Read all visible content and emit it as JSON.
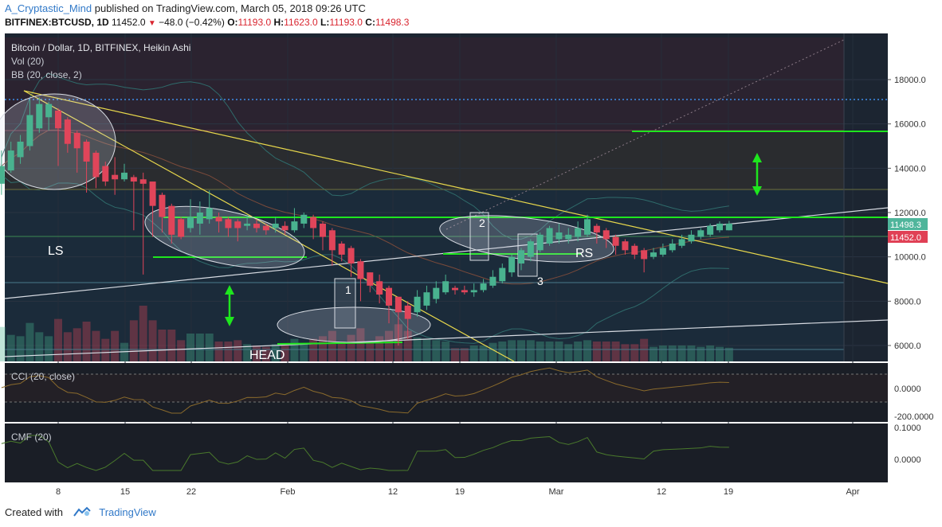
{
  "header": {
    "author": "A_Cryptastic_Mind",
    "published_text": "published on TradingView.com, March 05, 2018 09:26 UTC",
    "symbol": "BITFINEX:BTCUSD, 1D",
    "last": "11452.0",
    "change": "−48.0 (−0.42%)",
    "open_label": "O:",
    "open": "11193.0",
    "high_label": "H:",
    "high": "11623.0",
    "low_label": "L:",
    "low": "11193.0",
    "close_label": "C:",
    "close": "11498.3"
  },
  "legend": {
    "title": "Bitcoin / Dollar, 1D, BITFINEX, Heikin Ashi",
    "vol": "Vol (20)",
    "bb": "BB (20, close, 2)",
    "cci": "CCI (20, close)",
    "cmf": "CMF (20)"
  },
  "annotations": {
    "ls": "LS",
    "head": "HEAD",
    "rs": "RS",
    "p1": "1",
    "p2": "2",
    "p3": "3"
  },
  "price_tags": {
    "close_tag": "11498.3",
    "last_tag": "11452.0",
    "up_color": "#4fb59b",
    "down_color": "#e04055"
  },
  "colors": {
    "background": "#1c2531",
    "up": "#49b28f",
    "down": "#e0455a",
    "green_line": "#1ee61e",
    "yellow_line": "#e8d84c",
    "white_line": "#d8dce3",
    "blue_dotted": "#3e8de8",
    "cci_line": "#8a6a2c",
    "cmf_line": "#4a7a2c"
  },
  "footer": {
    "created_with": "Created with",
    "brand": "TradingView"
  },
  "chart_data": {
    "type": "candlestick",
    "title": "Bitcoin / Dollar, 1D, BITFINEX, Heikin Ashi",
    "x_tick_labels": [
      "8",
      "15",
      "22",
      "Feb",
      "12",
      "19",
      "Mar",
      "12",
      "19",
      "Apr"
    ],
    "y_tick_labels": [
      "18000.0",
      "16000.0",
      "14000.0",
      "12000.0",
      "10000.0",
      "8000.0",
      "6000.0"
    ],
    "ylim": [
      5300,
      19800
    ],
    "cci_ticks": [
      "0.0000",
      "-200.0000"
    ],
    "cmf_ticks": [
      "0.1000",
      "0.0000"
    ],
    "candles": [
      {
        "date": "2018-01-02",
        "open": 13300,
        "close": 14100,
        "high": 14800,
        "low": 12800
      },
      {
        "date": "2018-01-03",
        "open": 13900,
        "close": 14800,
        "high": 15200,
        "low": 13800
      },
      {
        "date": "2018-01-04",
        "open": 14500,
        "close": 15200,
        "high": 15500,
        "low": 14200
      },
      {
        "date": "2018-01-05",
        "open": 15000,
        "close": 16400,
        "high": 17100,
        "low": 14800
      },
      {
        "date": "2018-01-06",
        "open": 15800,
        "close": 16900,
        "high": 17200,
        "low": 15600
      },
      {
        "date": "2018-01-07",
        "open": 16300,
        "close": 16900,
        "high": 17000,
        "low": 15700
      },
      {
        "date": "2018-01-08",
        "open": 16600,
        "close": 15800,
        "high": 16700,
        "low": 14100
      },
      {
        "date": "2018-01-09",
        "open": 16200,
        "close": 15100,
        "high": 16300,
        "low": 14700
      },
      {
        "date": "2018-01-10",
        "open": 15600,
        "close": 14900,
        "high": 15700,
        "low": 13800
      },
      {
        "date": "2018-01-11",
        "open": 15200,
        "close": 14300,
        "high": 15300,
        "low": 12900
      },
      {
        "date": "2018-01-12",
        "open": 14700,
        "close": 13600,
        "high": 14800,
        "low": 13100
      },
      {
        "date": "2018-01-13",
        "open": 14100,
        "close": 13400,
        "high": 14300,
        "low": 13200
      },
      {
        "date": "2018-01-14",
        "open": 13700,
        "close": 13500,
        "high": 14500,
        "low": 12800
      },
      {
        "date": "2018-01-15",
        "open": 13500,
        "close": 13800,
        "high": 14200,
        "low": 13400
      },
      {
        "date": "2018-01-16",
        "open": 13600,
        "close": 13400,
        "high": 13700,
        "low": 11200
      },
      {
        "date": "2018-01-17",
        "open": 13500,
        "close": 13300,
        "high": 13800,
        "low": 9200
      },
      {
        "date": "2018-01-18",
        "open": 13400,
        "close": 12300,
        "high": 13400,
        "low": 10900
      },
      {
        "date": "2018-01-19",
        "open": 12800,
        "close": 11800,
        "high": 12900,
        "low": 11100
      },
      {
        "date": "2018-01-20",
        "open": 12300,
        "close": 11000,
        "high": 12400,
        "low": 10600
      },
      {
        "date": "2018-01-21",
        "open": 11700,
        "close": 10900,
        "high": 11800,
        "low": 10800
      },
      {
        "date": "2018-01-22",
        "open": 11300,
        "close": 11800,
        "high": 12600,
        "low": 11100
      },
      {
        "date": "2018-01-23",
        "open": 11500,
        "close": 12000,
        "high": 12500,
        "low": 11000
      },
      {
        "date": "2018-01-24",
        "open": 11700,
        "close": 12200,
        "high": 13000,
        "low": 11500
      },
      {
        "date": "2018-01-25",
        "open": 11800,
        "close": 11600,
        "high": 12000,
        "low": 11100
      },
      {
        "date": "2018-01-26",
        "open": 11700,
        "close": 11300,
        "high": 11800,
        "low": 10900
      },
      {
        "date": "2018-01-27",
        "open": 11600,
        "close": 11300,
        "high": 11700,
        "low": 10700
      },
      {
        "date": "2018-01-28",
        "open": 11400,
        "close": 11500,
        "high": 11900,
        "low": 11200
      },
      {
        "date": "2018-01-29",
        "open": 11500,
        "close": 11300,
        "high": 11700,
        "low": 11100
      },
      {
        "date": "2018-01-30",
        "open": 11400,
        "close": 11200,
        "high": 11500,
        "low": 11000
      },
      {
        "date": "2018-01-31",
        "open": 11300,
        "close": 11500,
        "high": 11800,
        "low": 11100
      },
      {
        "date": "2018-02-01",
        "open": 11400,
        "close": 11200,
        "high": 11600,
        "low": 11000
      },
      {
        "date": "2018-02-02",
        "open": 11200,
        "close": 11600,
        "high": 12200,
        "low": 11100
      },
      {
        "date": "2018-02-03",
        "open": 11500,
        "close": 11900,
        "high": 12000,
        "low": 11300
      },
      {
        "date": "2018-02-04",
        "open": 11800,
        "close": 11300,
        "high": 11900,
        "low": 10800
      },
      {
        "date": "2018-02-05",
        "open": 11500,
        "close": 10900,
        "high": 11600,
        "low": 10300
      },
      {
        "date": "2018-02-06",
        "open": 11200,
        "close": 10300,
        "high": 11300,
        "low": 9600
      },
      {
        "date": "2018-02-07",
        "open": 10600,
        "close": 10100,
        "high": 10700,
        "low": 9800
      },
      {
        "date": "2018-02-08",
        "open": 10400,
        "close": 9700,
        "high": 10500,
        "low": 9100
      },
      {
        "date": "2018-02-09",
        "open": 9800,
        "close": 9000,
        "high": 9900,
        "low": 8000
      },
      {
        "date": "2018-02-10",
        "open": 9300,
        "close": 8700,
        "high": 9300,
        "low": 8400
      },
      {
        "date": "2018-02-11",
        "open": 8900,
        "close": 8300,
        "high": 9200,
        "low": 7900
      },
      {
        "date": "2018-02-12",
        "open": 8600,
        "close": 7800,
        "high": 8700,
        "low": 7000
      },
      {
        "date": "2018-02-13",
        "open": 8200,
        "close": 7500,
        "high": 8200,
        "low": 6000
      },
      {
        "date": "2018-02-14",
        "open": 7800,
        "close": 7200,
        "high": 8000,
        "low": 6300
      },
      {
        "date": "2018-02-15",
        "open": 7500,
        "close": 8200,
        "high": 8500,
        "low": 7300
      },
      {
        "date": "2018-02-16",
        "open": 7800,
        "close": 8400,
        "high": 8700,
        "low": 7600
      },
      {
        "date": "2018-02-17",
        "open": 8100,
        "close": 8600,
        "high": 8900,
        "low": 7900
      },
      {
        "date": "2018-02-18",
        "open": 8400,
        "close": 8900,
        "high": 9200,
        "low": 8300
      },
      {
        "date": "2018-02-19",
        "open": 8600,
        "close": 8500,
        "high": 8700,
        "low": 8300
      },
      {
        "date": "2018-02-20",
        "open": 8500,
        "close": 8400,
        "high": 8700,
        "low": 8300
      },
      {
        "date": "2018-02-21",
        "open": 8400,
        "close": 8500,
        "high": 8800,
        "low": 8200
      },
      {
        "date": "2018-02-22",
        "open": 8500,
        "close": 8800,
        "high": 9000,
        "low": 8400
      },
      {
        "date": "2018-02-23",
        "open": 8700,
        "close": 9100,
        "high": 9400,
        "low": 8600
      },
      {
        "date": "2018-02-24",
        "open": 8900,
        "close": 9500,
        "high": 9700,
        "low": 8800
      },
      {
        "date": "2018-02-25",
        "open": 9300,
        "close": 10000,
        "high": 10100,
        "low": 9100
      },
      {
        "date": "2018-02-26",
        "open": 9700,
        "close": 10300,
        "high": 10400,
        "low": 9400
      },
      {
        "date": "2018-02-27",
        "open": 10000,
        "close": 10700,
        "high": 10800,
        "low": 9800
      },
      {
        "date": "2018-02-28",
        "open": 10300,
        "close": 11000,
        "high": 11100,
        "low": 10200
      },
      {
        "date": "2018-03-01",
        "open": 10600,
        "close": 11300,
        "high": 11400,
        "low": 10500
      },
      {
        "date": "2018-03-02",
        "open": 10800,
        "close": 11100,
        "high": 11500,
        "low": 10600
      },
      {
        "date": "2018-03-03",
        "open": 10800,
        "close": 11000,
        "high": 11300,
        "low": 10600
      },
      {
        "date": "2018-03-04",
        "open": 10900,
        "close": 11300,
        "high": 11600,
        "low": 10700
      },
      {
        "date": "2018-03-05",
        "open": 11000,
        "close": 11700,
        "high": 11900,
        "low": 10900
      },
      {
        "date": "2018-03-06",
        "open": 11400,
        "close": 11100,
        "high": 11500,
        "low": 10600
      },
      {
        "date": "2018-03-07",
        "open": 11200,
        "close": 10800,
        "high": 11300,
        "low": 10400
      },
      {
        "date": "2018-03-08",
        "open": 10900,
        "close": 10500,
        "high": 11000,
        "low": 10100
      },
      {
        "date": "2018-03-09",
        "open": 10700,
        "close": 10300,
        "high": 10800,
        "low": 10100
      },
      {
        "date": "2018-03-10",
        "open": 10500,
        "close": 10100,
        "high": 10600,
        "low": 9900
      },
      {
        "date": "2018-03-11",
        "open": 10300,
        "close": 9900,
        "high": 10400,
        "low": 9300
      },
      {
        "date": "2018-03-12",
        "open": 10000,
        "close": 10200,
        "high": 10400,
        "low": 9900
      },
      {
        "date": "2018-03-13",
        "open": 10100,
        "close": 10400,
        "high": 10600,
        "low": 10000
      },
      {
        "date": "2018-03-14",
        "open": 10300,
        "close": 10600,
        "high": 10800,
        "low": 10200
      },
      {
        "date": "2018-03-15",
        "open": 10500,
        "close": 10800,
        "high": 11000,
        "low": 10400
      },
      {
        "date": "2018-03-16",
        "open": 10700,
        "close": 11000,
        "high": 11200,
        "low": 10600
      },
      {
        "date": "2018-03-17",
        "open": 10900,
        "close": 11200,
        "high": 11300,
        "low": 10800
      },
      {
        "date": "2018-03-18",
        "open": 11000,
        "close": 11400,
        "high": 11500,
        "low": 10900
      },
      {
        "date": "2018-03-19",
        "open": 11200,
        "close": 11500,
        "high": 11600,
        "low": 11100
      },
      {
        "date": "2018-03-20",
        "open": 11200,
        "close": 11500,
        "high": 11623,
        "low": 11193
      }
    ]
  }
}
